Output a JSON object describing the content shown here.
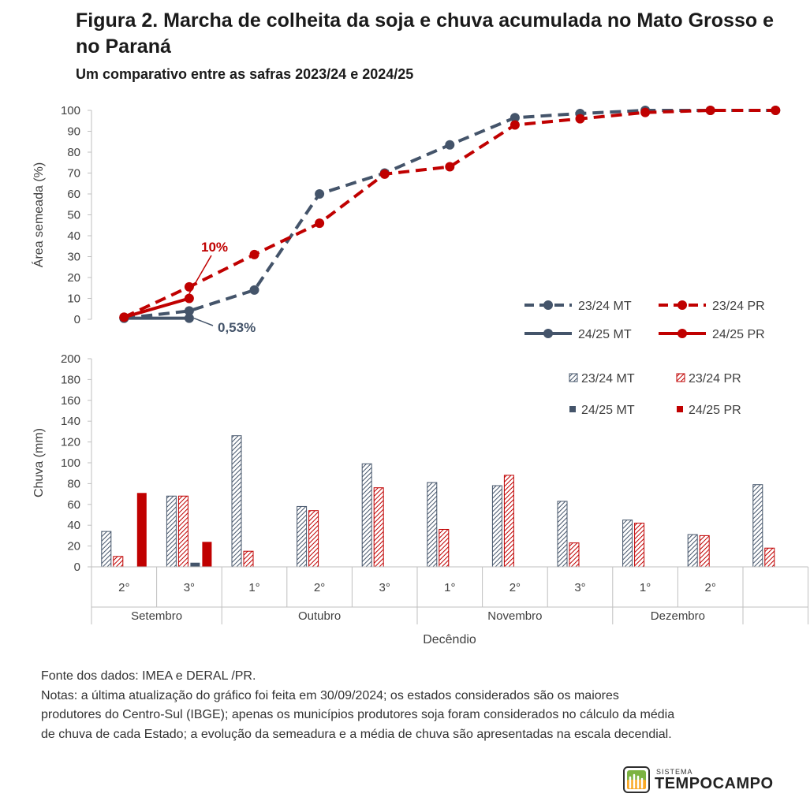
{
  "title": "Figura 2. Marcha de colheita da soja e chuva acumulada no Mato Grosso e no Paraná",
  "subtitle": "Um comparativo entre as safras 2023/24 e 2024/25",
  "colors": {
    "mt": "#44546a",
    "pr": "#c00000",
    "axis": "#bfbfbf",
    "text": "#404040"
  },
  "chart_data": [
    {
      "type": "line",
      "ylabel": "Área semeada (%)",
      "ylim": [
        0,
        100
      ],
      "yticks": [
        0,
        10,
        20,
        30,
        40,
        50,
        60,
        70,
        80,
        90,
        100
      ],
      "x_slots": 11,
      "grid": false,
      "legend_position": "bottom-right",
      "series": [
        {
          "name": "23/24 MT",
          "style": "dashed",
          "color": "#44546a",
          "x": [
            0,
            1,
            2,
            3,
            4,
            5,
            6,
            7,
            8,
            9,
            10
          ],
          "values": [
            0.5,
            4,
            14,
            60,
            70,
            83.5,
            96.5,
            98.5,
            100,
            100,
            100
          ]
        },
        {
          "name": "23/24 PR",
          "style": "dashed",
          "color": "#c00000",
          "x": [
            0,
            1,
            2,
            3,
            4,
            5,
            6,
            7,
            8,
            9,
            10
          ],
          "values": [
            1,
            15.5,
            31,
            46,
            69.5,
            73,
            93,
            96,
            99,
            100,
            100
          ]
        },
        {
          "name": "24/25 MT",
          "style": "solid",
          "color": "#44546a",
          "x": [
            0,
            1
          ],
          "values": [
            0.5,
            0.53
          ]
        },
        {
          "name": "24/25 PR",
          "style": "solid",
          "color": "#c00000",
          "x": [
            0,
            1
          ],
          "values": [
            1,
            10
          ]
        }
      ],
      "annotations": [
        {
          "text": "10%",
          "series": "24/25 PR",
          "x": 1,
          "y": 10
        },
        {
          "text": "0,53%",
          "series": "24/25 MT",
          "x": 1,
          "y": 0.53
        }
      ]
    },
    {
      "type": "bar",
      "ylabel": "Chuva (mm)",
      "xlabel": "Decêndio",
      "ylim": [
        0,
        200
      ],
      "yticks": [
        0,
        20,
        40,
        60,
        80,
        100,
        120,
        140,
        160,
        180,
        200
      ],
      "grid": false,
      "legend_position": "top-right",
      "categories": [
        "2°",
        "3°",
        "1°",
        "2°",
        "3°",
        "1°",
        "2°",
        "3°",
        "1°",
        "2°",
        ""
      ],
      "groups": [
        {
          "label": "Setembro",
          "count": 2
        },
        {
          "label": "Outubro",
          "count": 3
        },
        {
          "label": "Novembro",
          "count": 3
        },
        {
          "label": "Dezembro",
          "count": 2
        },
        {
          "label": "",
          "count": 1
        }
      ],
      "series": [
        {
          "name": "23/24 MT",
          "pattern": "hatched",
          "color": "#44546a",
          "values": [
            34,
            68,
            126,
            58,
            99,
            81,
            78,
            63,
            45,
            31,
            79
          ]
        },
        {
          "name": "23/24 PR",
          "pattern": "hatched",
          "color": "#c00000",
          "values": [
            10,
            68,
            15,
            54,
            76,
            36,
            88,
            23,
            42,
            30,
            18
          ]
        },
        {
          "name": "24/25 MT",
          "pattern": "solid",
          "color": "#44546a",
          "values": [
            0,
            4,
            null,
            null,
            null,
            null,
            null,
            null,
            null,
            null,
            null
          ]
        },
        {
          "name": "24/25 PR",
          "pattern": "solid",
          "color": "#c00000",
          "values": [
            71,
            24,
            null,
            null,
            null,
            null,
            null,
            null,
            null,
            null,
            null
          ]
        }
      ]
    }
  ],
  "notes": {
    "source": "Fonte dos dados: IMEA e DERAL /PR.",
    "line1": "Notas: a última atualização do gráfico foi feita em 30/09/2024; os estados considerados são os maiores",
    "line2": "produtores do Centro-Sul (IBGE); apenas os municípios produtores soja foram considerados no cálculo da média",
    "line3": "de chuva de cada Estado; a evolução da semeadura e a média de chuva são apresentadas na escala decendial."
  },
  "logo": {
    "small": "SISTEMA",
    "big": "TEMPOCAMPO"
  }
}
